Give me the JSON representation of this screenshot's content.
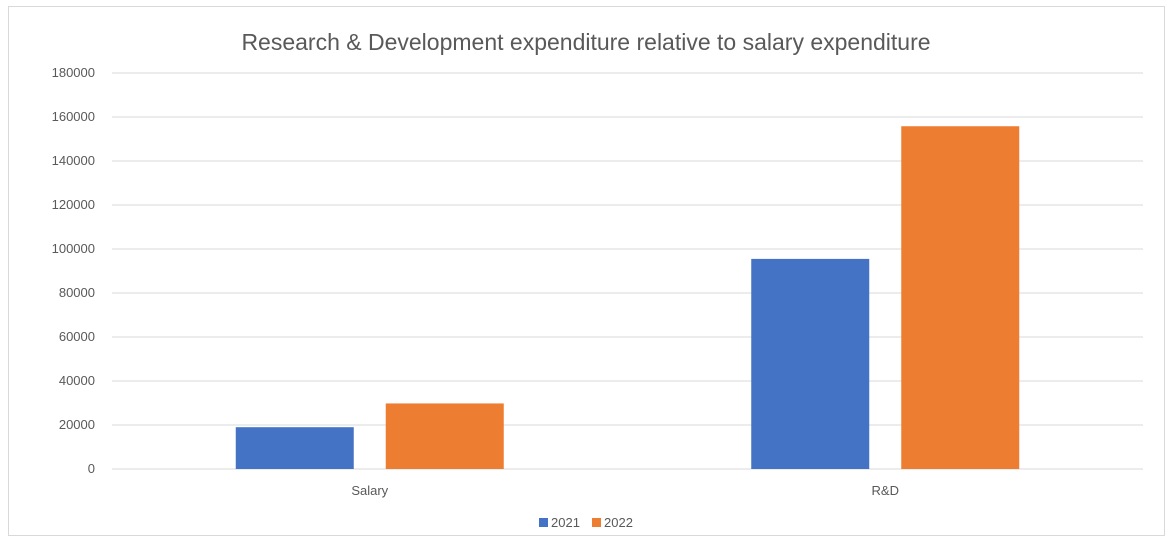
{
  "chart_data": {
    "type": "bar",
    "title": "Research & Development expenditure relative to salary expenditure",
    "xlabel": "",
    "ylabel": "",
    "categories": [
      "Salary",
      "R&D"
    ],
    "series": [
      {
        "name": "2021",
        "values": [
          19000,
          95500
        ],
        "color": "#4472C4"
      },
      {
        "name": "2022",
        "values": [
          29800,
          155800
        ],
        "color": "#ED7D31"
      }
    ],
    "ylim": [
      0,
      180000
    ],
    "yticks": [
      "0",
      "20000",
      "40000",
      "60000",
      "80000",
      "100000",
      "120000",
      "140000",
      "160000",
      "180000"
    ],
    "grid": true,
    "legend_position": "bottom"
  }
}
